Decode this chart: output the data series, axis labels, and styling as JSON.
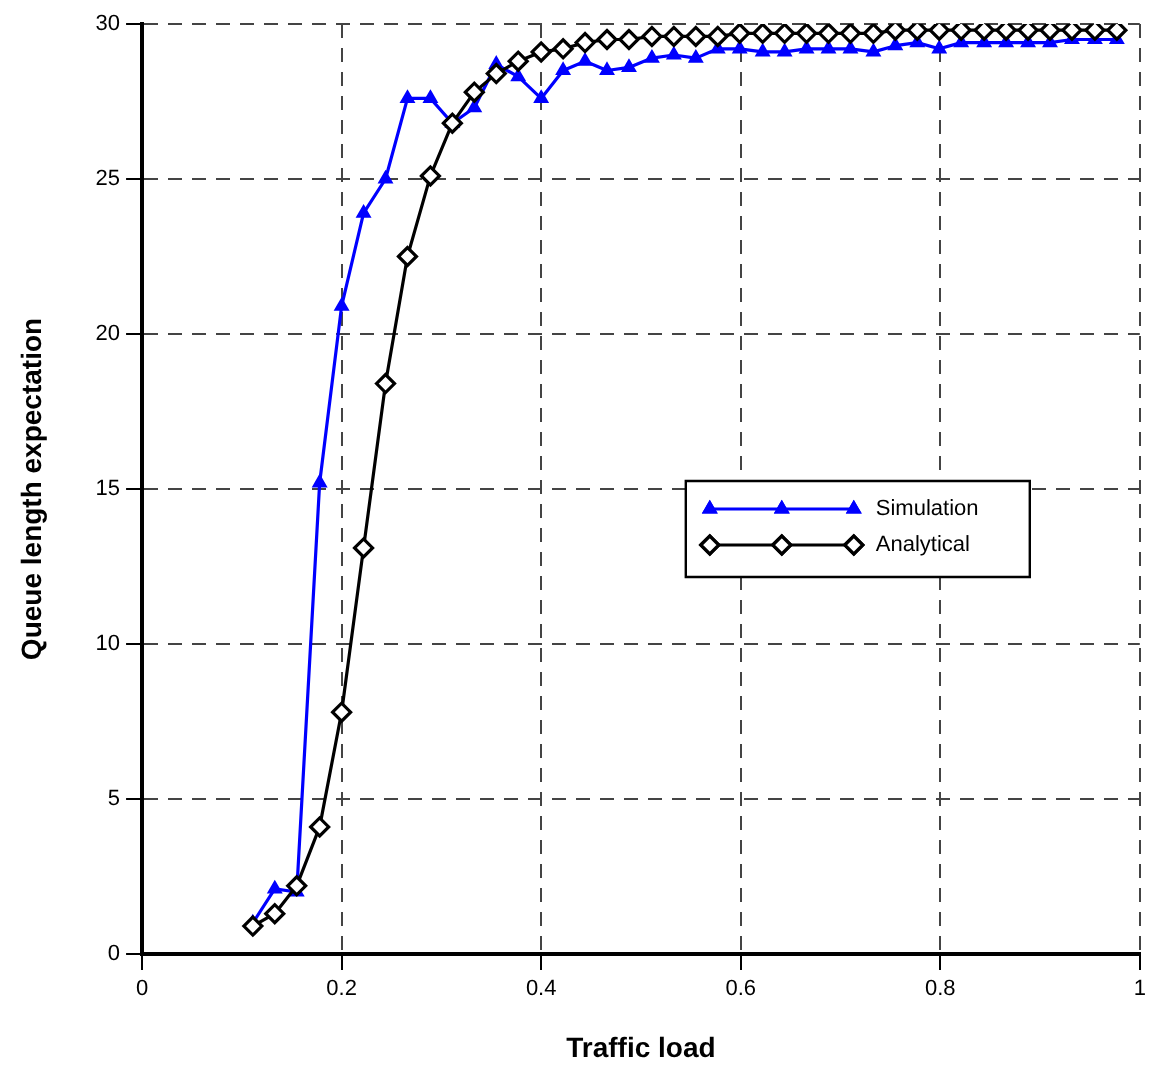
{
  "chart_data": {
    "type": "line",
    "xlabel": "Traffic load",
    "ylabel": "Queue length expectation",
    "x": [
      0.111,
      0.133,
      0.155,
      0.178,
      0.2,
      0.222,
      0.244,
      0.266,
      0.289,
      0.311,
      0.333,
      0.355,
      0.377,
      0.4,
      0.422,
      0.444,
      0.466,
      0.488,
      0.511,
      0.533,
      0.555,
      0.577,
      0.599,
      0.622,
      0.644,
      0.666,
      0.688,
      0.71,
      0.733,
      0.755,
      0.777,
      0.799,
      0.821,
      0.844,
      0.866,
      0.888,
      0.91,
      0.932,
      0.955,
      0.977
    ],
    "series": [
      {
        "name": "Simulation",
        "color": "#0000ff",
        "marker": "triangle",
        "values": [
          1.0,
          2.1,
          2.0,
          15.2,
          20.9,
          23.9,
          25.0,
          27.6,
          27.6,
          26.8,
          27.3,
          28.7,
          28.3,
          27.6,
          28.5,
          28.8,
          28.5,
          28.6,
          28.9,
          29.0,
          28.9,
          29.2,
          29.2,
          29.1,
          29.1,
          29.2,
          29.2,
          29.2,
          29.1,
          29.3,
          29.4,
          29.2,
          29.4,
          29.4,
          29.4,
          29.4,
          29.4,
          29.5,
          29.5,
          29.5
        ]
      },
      {
        "name": "Analytical",
        "color": "#000000",
        "marker": "diamond",
        "values": [
          0.9,
          1.3,
          2.2,
          4.1,
          7.8,
          13.1,
          18.4,
          22.5,
          25.1,
          26.8,
          27.8,
          28.4,
          28.8,
          29.1,
          29.2,
          29.4,
          29.5,
          29.5,
          29.6,
          29.6,
          29.6,
          29.6,
          29.7,
          29.7,
          29.7,
          29.7,
          29.7,
          29.7,
          29.7,
          29.8,
          29.8,
          29.8,
          29.8,
          29.8,
          29.8,
          29.8,
          29.8,
          29.8,
          29.8,
          29.8
        ]
      }
    ],
    "xlim": [
      0,
      1
    ],
    "xticks": [
      0,
      0.2,
      0.4,
      0.6,
      0.8,
      1
    ],
    "ylim": [
      0,
      30
    ],
    "yticks": [
      0,
      5,
      10,
      15,
      20,
      25,
      30
    ],
    "grid": true,
    "legend": "right",
    "line_style": "solid"
  }
}
